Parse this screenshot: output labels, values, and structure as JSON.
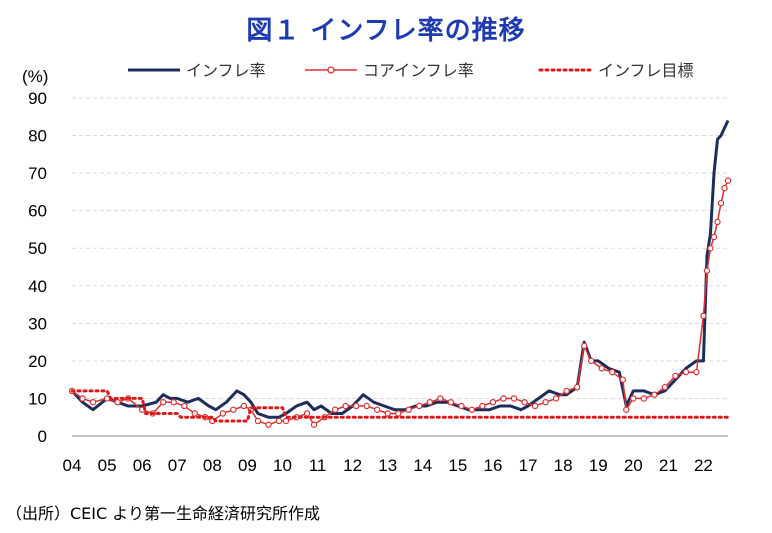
{
  "title": "図１ インフレ率の推移",
  "source": "（出所）CEIC より第一生命経済研究所作成",
  "chart_data": {
    "type": "line",
    "title": "図１ インフレ率の推移",
    "ylabel": "(%)",
    "xlabel": "",
    "ylim": [
      0,
      90
    ],
    "yticks": [
      0,
      10,
      20,
      30,
      40,
      50,
      60,
      70,
      80,
      90
    ],
    "xlim": [
      2004.0,
      2022.7
    ],
    "xtick_labels": [
      "04",
      "05",
      "06",
      "07",
      "08",
      "09",
      "10",
      "11",
      "12",
      "13",
      "14",
      "15",
      "16",
      "17",
      "18",
      "19",
      "20",
      "21",
      "22"
    ],
    "grid": true,
    "legend_position": "top",
    "series": [
      {
        "name": "インフレ率",
        "color": "#1f2d5c",
        "style": "solid",
        "x": [
          2004.0,
          2004.3,
          2004.6,
          2005.0,
          2005.3,
          2005.6,
          2006.0,
          2006.4,
          2006.6,
          2006.8,
          2007.0,
          2007.3,
          2007.6,
          2007.9,
          2008.1,
          2008.4,
          2008.7,
          2008.9,
          2009.1,
          2009.3,
          2009.6,
          2009.9,
          2010.1,
          2010.4,
          2010.7,
          2010.9,
          2011.1,
          2011.4,
          2011.7,
          2012.0,
          2012.3,
          2012.6,
          2012.9,
          2013.2,
          2013.5,
          2013.8,
          2014.1,
          2014.4,
          2014.7,
          2015.0,
          2015.3,
          2015.6,
          2015.9,
          2016.2,
          2016.5,
          2016.8,
          2017.0,
          2017.3,
          2017.6,
          2017.9,
          2018.1,
          2018.4,
          2018.6,
          2018.8,
          2019.0,
          2019.3,
          2019.6,
          2019.8,
          2020.0,
          2020.3,
          2020.6,
          2020.9,
          2021.2,
          2021.5,
          2021.8,
          2022.0,
          2022.1,
          2022.2,
          2022.3,
          2022.4,
          2022.5,
          2022.6,
          2022.7
        ],
        "y": [
          12,
          9,
          7,
          10,
          9,
          8,
          8,
          9,
          11,
          10,
          10,
          9,
          10,
          8,
          7,
          9,
          12,
          11,
          9,
          6,
          5,
          5,
          6,
          8,
          9,
          7,
          8,
          6,
          6,
          8,
          11,
          9,
          8,
          7,
          7,
          8,
          8,
          9,
          9,
          8,
          7,
          7,
          7,
          8,
          8,
          7,
          8,
          10,
          12,
          11,
          11,
          13,
          25,
          20,
          20,
          18,
          17,
          8,
          12,
          12,
          11,
          12,
          15,
          18,
          20,
          20,
          48,
          54,
          70,
          79,
          80,
          82,
          84
        ]
      },
      {
        "name": "コアインフレ率",
        "color": "#e03030",
        "style": "marker",
        "x": [
          2004.0,
          2004.3,
          2004.6,
          2005.0,
          2005.3,
          2005.6,
          2006.0,
          2006.3,
          2006.6,
          2006.9,
          2007.2,
          2007.5,
          2007.8,
          2008.0,
          2008.3,
          2008.6,
          2008.9,
          2009.1,
          2009.3,
          2009.6,
          2009.9,
          2010.1,
          2010.4,
          2010.7,
          2010.9,
          2011.2,
          2011.5,
          2011.8,
          2012.1,
          2012.4,
          2012.7,
          2013.0,
          2013.3,
          2013.6,
          2013.9,
          2014.2,
          2014.5,
          2014.8,
          2015.1,
          2015.4,
          2015.7,
          2016.0,
          2016.3,
          2016.6,
          2016.9,
          2017.2,
          2017.5,
          2017.8,
          2018.1,
          2018.4,
          2018.6,
          2018.8,
          2019.1,
          2019.4,
          2019.7,
          2019.8,
          2020.0,
          2020.3,
          2020.6,
          2020.9,
          2021.2,
          2021.5,
          2021.8,
          2022.0,
          2022.1,
          2022.2,
          2022.3,
          2022.4,
          2022.5,
          2022.6,
          2022.7
        ],
        "y": [
          12,
          10,
          9,
          10,
          9,
          10,
          7,
          6,
          9,
          9,
          8,
          6,
          5,
          4,
          6,
          7,
          8,
          7,
          4,
          3,
          4,
          4,
          5,
          6,
          3,
          5,
          7,
          8,
          8,
          8,
          7,
          6,
          6,
          7,
          8,
          9,
          10,
          9,
          8,
          7,
          8,
          9,
          10,
          10,
          9,
          8,
          9,
          10,
          12,
          13,
          24,
          20,
          18,
          17,
          15,
          7,
          10,
          10,
          11,
          13,
          16,
          17,
          17,
          32,
          44,
          50,
          53,
          57,
          62,
          66,
          68
        ]
      },
      {
        "name": "インフレ目標",
        "color": "#e01818",
        "style": "dotted",
        "x": [
          2004.0,
          2005.0,
          2005.1,
          2006.0,
          2006.1,
          2007.0,
          2007.1,
          2008.0,
          2008.1,
          2009.0,
          2009.1,
          2010.0,
          2010.1,
          2022.7
        ],
        "y": [
          12,
          12,
          10,
          10,
          6,
          6,
          5,
          5,
          4,
          4,
          7.5,
          7.5,
          5,
          5
        ]
      }
    ]
  }
}
